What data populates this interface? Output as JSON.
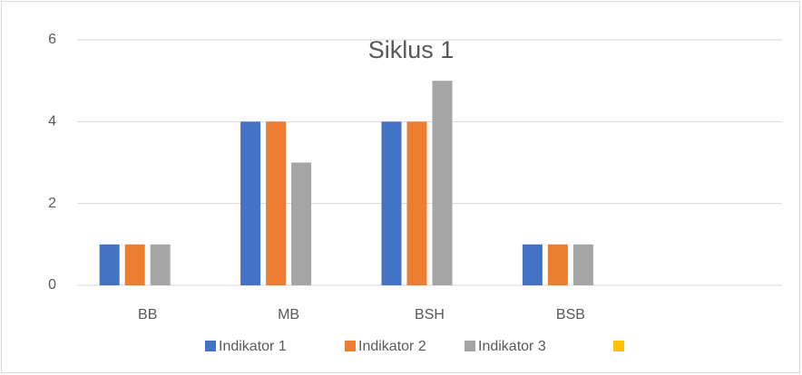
{
  "chart_data": {
    "type": "bar",
    "title": "Siklus 1",
    "categories": [
      "BB",
      "MB",
      "BSH",
      "BSB",
      null
    ],
    "series": [
      {
        "name": "Indikator 1",
        "color": "#4472c4",
        "values": [
          1,
          4,
          4,
          1,
          null
        ]
      },
      {
        "name": "Indikator 2",
        "color": "#ed7d31",
        "values": [
          1,
          4,
          4,
          1,
          null
        ]
      },
      {
        "name": "Indikator 3",
        "color": "#a5a5a5",
        "values": [
          1,
          3,
          5,
          1,
          null
        ]
      },
      {
        "color": "#ffc000",
        "values": [
          null,
          null,
          null,
          null,
          null
        ]
      }
    ],
    "ylim": [
      0,
      6
    ],
    "yticks": [
      0,
      2,
      4,
      6
    ],
    "grid": true,
    "legend": "bottom"
  }
}
